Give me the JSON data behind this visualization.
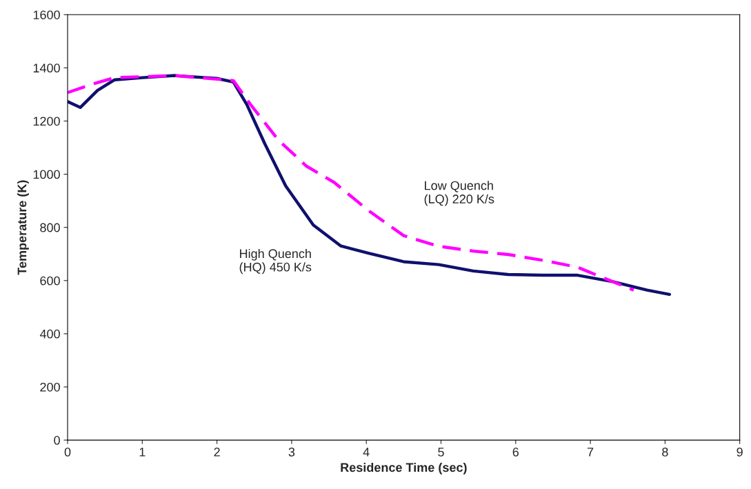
{
  "chart_data": {
    "type": "line",
    "xlabel": "Residence Time (sec)",
    "ylabel": "Temperature (K)",
    "xlim": [
      0,
      9
    ],
    "xticks": [
      0,
      1,
      2,
      3,
      4,
      5,
      6,
      7,
      8,
      9
    ],
    "ylim": [
      0,
      1600
    ],
    "yticks": [
      0,
      200,
      400,
      600,
      800,
      1000,
      1200,
      1400,
      1600
    ],
    "grid": false,
    "legend": false,
    "series": [
      {
        "name": "High Quench\n(HQ) 450 K/s",
        "color": "#10106e",
        "line_style": "solid",
        "x": [
          0,
          0.17,
          0.4,
          0.63,
          1.0,
          1.43,
          2.0,
          2.22,
          2.4,
          2.64,
          2.92,
          3.29,
          3.66,
          4.03,
          4.5,
          4.97,
          5.43,
          5.9,
          6.37,
          6.83,
          7.3,
          7.76,
          8.06
        ],
        "values": [
          1273,
          1251,
          1315,
          1355,
          1363,
          1371,
          1360,
          1347,
          1262,
          1115,
          956,
          809,
          730,
          703,
          671,
          660,
          636,
          623,
          620,
          620,
          596,
          564,
          548
        ]
      },
      {
        "name": "Low Quench\n(LQ) 220 K/s",
        "color": "#ff00ff",
        "line_style": "dashed",
        "x": [
          0,
          0.31,
          0.63,
          1.43,
          2.22,
          2.45,
          2.82,
          3.2,
          3.57,
          4.03,
          4.5,
          4.97,
          5.43,
          5.9,
          6.37,
          6.83,
          7.3,
          7.58
        ],
        "values": [
          1307,
          1337,
          1363,
          1371,
          1352,
          1262,
          1129,
          1030,
          969,
          863,
          769,
          729,
          711,
          698,
          676,
          650,
          596,
          564
        ]
      }
    ]
  }
}
